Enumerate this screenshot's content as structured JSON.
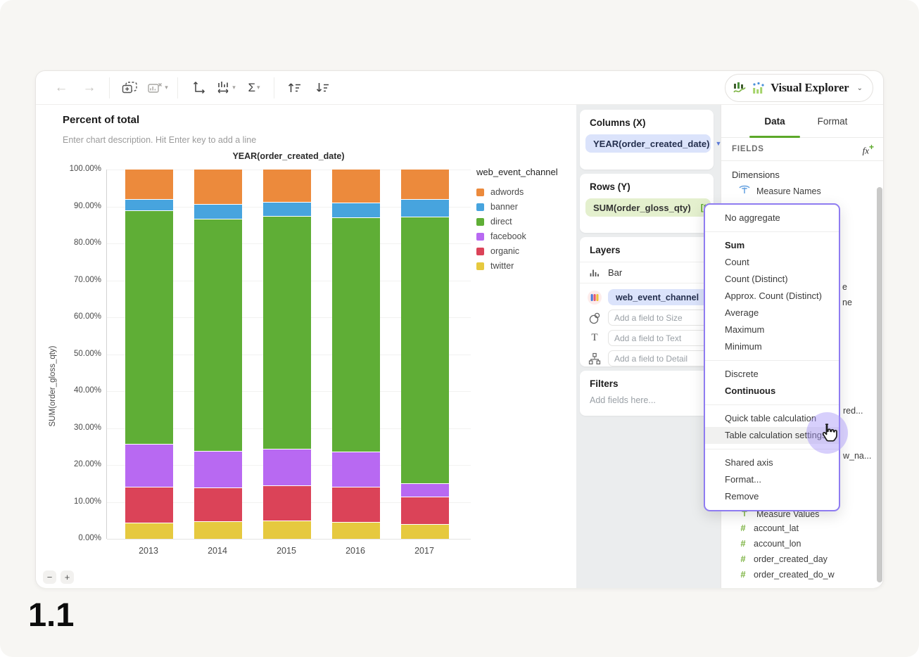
{
  "brand": {
    "label": "Visual Explorer"
  },
  "toolbar": {
    "icons": [
      "back-arrow-icon",
      "forward-arrow-icon",
      "add-chart-icon",
      "remove-chart-icon",
      "swap-axes-icon",
      "bar-size-icon",
      "aggregate-sigma-icon",
      "sort-ascending-icon",
      "sort-descending-icon"
    ],
    "sigma": "Σ"
  },
  "chart_header": {
    "title": "Percent of total",
    "description_placeholder": "Enter chart description. Hit Enter key to add a line"
  },
  "chart_data": {
    "type": "bar",
    "stacked": true,
    "percent": true,
    "title": "YEAR(order_created_date)",
    "ylabel": "SUM(order_gloss_qty)",
    "xlabel": "",
    "categories": [
      "2013",
      "2014",
      "2015",
      "2016",
      "2017"
    ],
    "series": [
      {
        "name": "twitter",
        "color": "#e6c93f",
        "values": [
          4.2,
          4.5,
          4.7,
          4.3,
          3.9
        ]
      },
      {
        "name": "organic",
        "color": "#db4358",
        "values": [
          9.7,
          9.2,
          9.5,
          9.6,
          7.3
        ]
      },
      {
        "name": "facebook",
        "color": "#b869f2",
        "values": [
          11.6,
          9.9,
          9.9,
          9.5,
          3.7
        ]
      },
      {
        "name": "direct",
        "color": "#5fae36",
        "values": [
          63.2,
          62.8,
          63.2,
          63.5,
          72.1
        ]
      },
      {
        "name": "banner",
        "color": "#47a4de",
        "values": [
          3.1,
          4.1,
          3.7,
          4.0,
          4.8
        ]
      },
      {
        "name": "adwords",
        "color": "#ec8a3c",
        "values": [
          8.2,
          9.5,
          9.0,
          9.1,
          8.2
        ]
      }
    ],
    "legend_title": "web_event_channel",
    "legend_order": [
      "adwords",
      "banner",
      "direct",
      "facebook",
      "organic",
      "twitter"
    ],
    "legend_position": "right",
    "ylim": [
      0,
      100
    ],
    "grid": true,
    "y_ticks": [
      "100.00%",
      "90.00%",
      "80.00%",
      "70.00%",
      "60.00%",
      "50.00%",
      "40.00%",
      "30.00%",
      "20.00%",
      "10.00%",
      "0.00%"
    ]
  },
  "panels": {
    "columns": {
      "title": "Columns (X)",
      "pill": "YEAR(order_created_date)"
    },
    "rows": {
      "title": "Rows (Y)",
      "pill": "SUM(order_gloss_qty)",
      "badge": "[*]"
    },
    "layers": {
      "title": "Layers",
      "mark_type": "Bar",
      "color_pill": "web_event_channel",
      "size_placeholder": "Add a field to Size",
      "text_placeholder": "Add a field to Text",
      "detail_placeholder": "Add a field to Detail"
    },
    "filters": {
      "title": "Filters",
      "placeholder": "Add fields here..."
    }
  },
  "sidebar": {
    "tabs": [
      {
        "label": "Data"
      },
      {
        "label": "Format"
      }
    ],
    "fields_header": "FIELDS",
    "fx_label": "fx",
    "fx_plus": "+",
    "dimensions_label": "Dimensions",
    "dimension_items": [
      "Measure Names"
    ],
    "clipped_fragments": [
      "e",
      "ne",
      "red...",
      "w_na..."
    ],
    "measure_items": [
      "Measure Values",
      "account_lat",
      "account_lon",
      "order_created_day",
      "order_created_do_w"
    ]
  },
  "menu": {
    "sections": [
      {
        "items": [
          {
            "label": "No aggregate"
          }
        ]
      },
      {
        "items": [
          {
            "label": "Sum",
            "bold": true
          },
          {
            "label": "Count"
          },
          {
            "label": "Count (Distinct)"
          },
          {
            "label": "Approx. Count (Distinct)"
          },
          {
            "label": "Average"
          },
          {
            "label": "Maximum"
          },
          {
            "label": "Minimum"
          }
        ]
      },
      {
        "items": [
          {
            "label": "Discrete"
          },
          {
            "label": "Continuous",
            "bold": true
          }
        ]
      },
      {
        "items": [
          {
            "label": "Quick table calculation"
          },
          {
            "label": "Table calculation settings",
            "highlighted": true
          }
        ]
      },
      {
        "items": [
          {
            "label": "Shared axis"
          },
          {
            "label": "Format..."
          },
          {
            "label": "Remove"
          }
        ]
      }
    ]
  },
  "zoom_controls": {
    "out": "−",
    "in": "+"
  },
  "page_label": "1.1",
  "colors": {
    "accent_green": "#5ba829",
    "pill_blue_bg": "#dbe3fb",
    "pill_green_bg": "#e4f0ce",
    "menu_border": "#8f7cf1",
    "cursor_halo": "#a794f8",
    "mid_panel_bg": "#ebedee"
  }
}
